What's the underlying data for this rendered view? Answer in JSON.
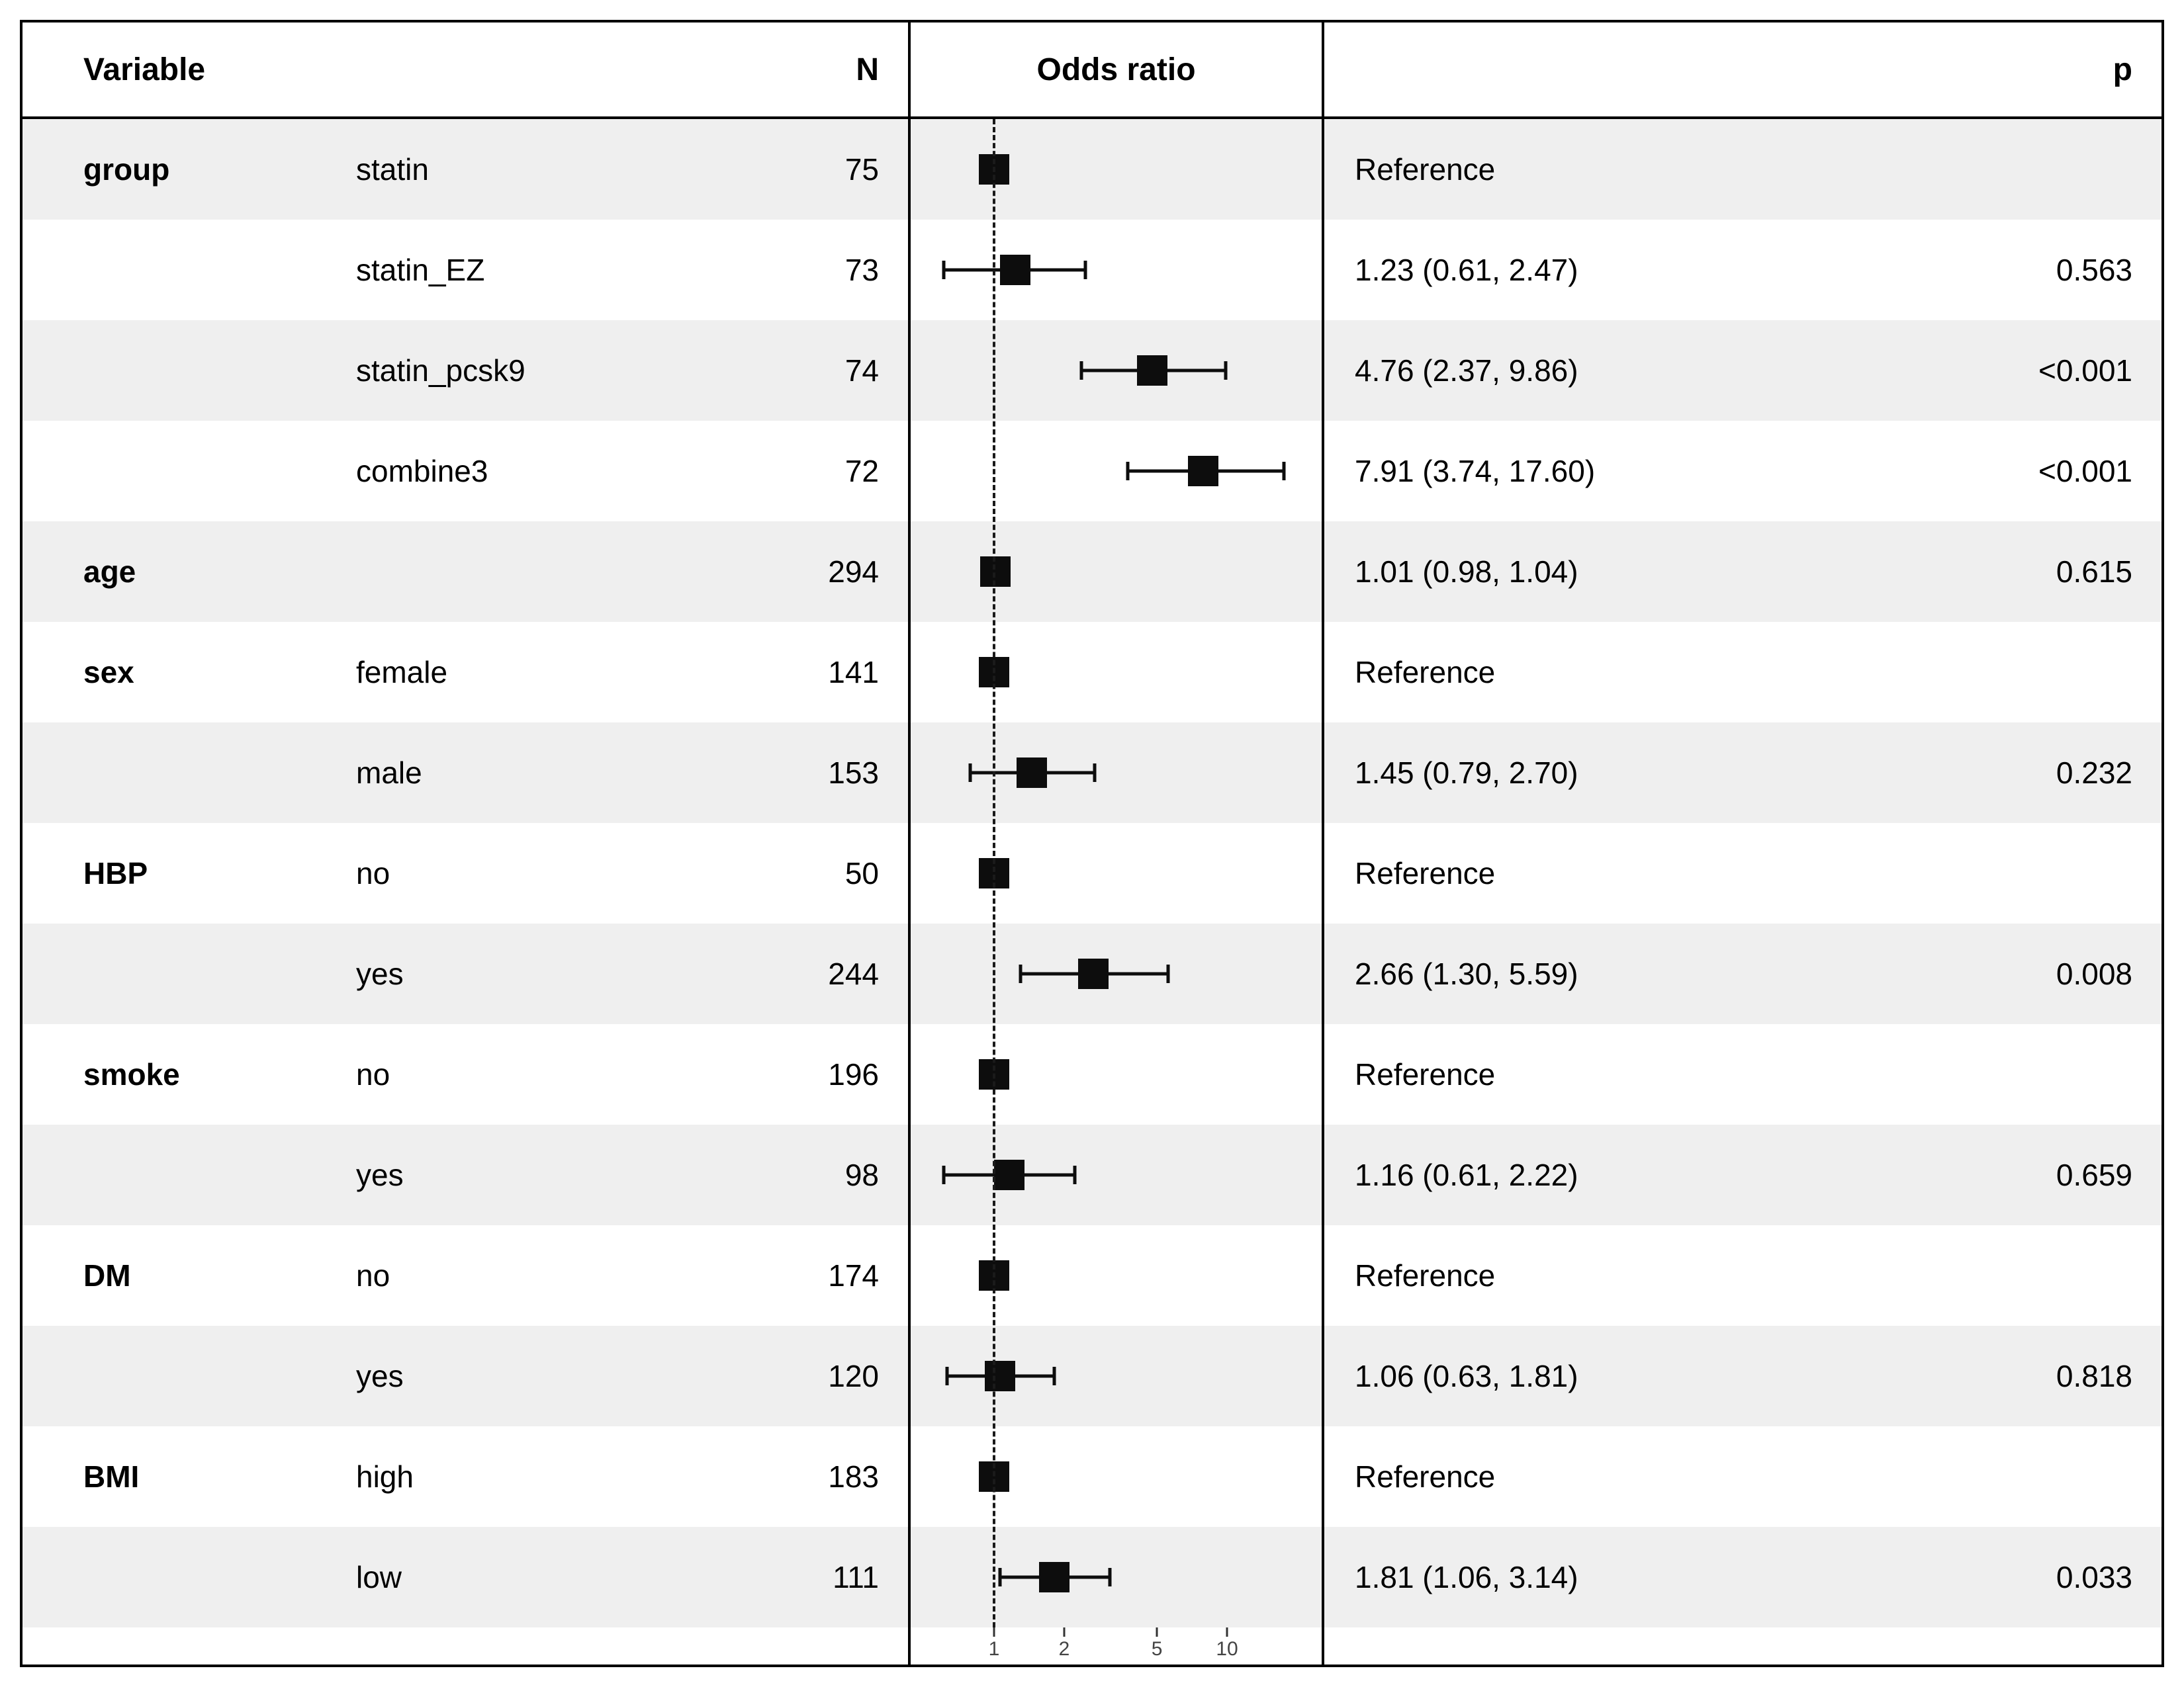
{
  "header": {
    "variable": "Variable",
    "n": "N",
    "odds_ratio": "Odds ratio",
    "p": "p"
  },
  "colors": {
    "stripe": "#efefef",
    "marker": "#0d0d0d",
    "border": "#000000"
  },
  "chart_data": {
    "type": "scatter",
    "subtype": "forest-plot",
    "xscale": "log",
    "xticks": [
      1,
      2,
      5,
      10
    ],
    "reference_line": 1,
    "x_range": [
      0.43,
      25.5
    ],
    "grid": false,
    "rows": [
      {
        "variable": "group",
        "level": "statin",
        "n": 75,
        "estimate": 1.0,
        "ci_low": null,
        "ci_high": null,
        "estimate_label": "Reference",
        "p": "",
        "shaded": true
      },
      {
        "variable": "",
        "level": "statin_EZ",
        "n": 73,
        "estimate": 1.23,
        "ci_low": 0.61,
        "ci_high": 2.47,
        "estimate_label": "1.23 (0.61, 2.47)",
        "p": "0.563",
        "shaded": false
      },
      {
        "variable": "",
        "level": "statin_pcsk9",
        "n": 74,
        "estimate": 4.76,
        "ci_low": 2.37,
        "ci_high": 9.86,
        "estimate_label": "4.76 (2.37, 9.86)",
        "p": "<0.001",
        "shaded": true
      },
      {
        "variable": "",
        "level": "combine3",
        "n": 72,
        "estimate": 7.91,
        "ci_low": 3.74,
        "ci_high": 17.6,
        "estimate_label": "7.91 (3.74, 17.60)",
        "p": "<0.001",
        "shaded": false
      },
      {
        "variable": "age",
        "level": "",
        "n": 294,
        "estimate": 1.01,
        "ci_low": 0.98,
        "ci_high": 1.04,
        "estimate_label": "1.01 (0.98, 1.04)",
        "p": "0.615",
        "shaded": true
      },
      {
        "variable": "sex",
        "level": "female",
        "n": 141,
        "estimate": 1.0,
        "ci_low": null,
        "ci_high": null,
        "estimate_label": "Reference",
        "p": "",
        "shaded": false
      },
      {
        "variable": "",
        "level": "male",
        "n": 153,
        "estimate": 1.45,
        "ci_low": 0.79,
        "ci_high": 2.7,
        "estimate_label": "1.45 (0.79, 2.70)",
        "p": "0.232",
        "shaded": true
      },
      {
        "variable": "HBP",
        "level": "no",
        "n": 50,
        "estimate": 1.0,
        "ci_low": null,
        "ci_high": null,
        "estimate_label": "Reference",
        "p": "",
        "shaded": false
      },
      {
        "variable": "",
        "level": "yes",
        "n": 244,
        "estimate": 2.66,
        "ci_low": 1.3,
        "ci_high": 5.59,
        "estimate_label": "2.66 (1.30, 5.59)",
        "p": "0.008",
        "shaded": true
      },
      {
        "variable": "smoke",
        "level": "no",
        "n": 196,
        "estimate": 1.0,
        "ci_low": null,
        "ci_high": null,
        "estimate_label": "Reference",
        "p": "",
        "shaded": false
      },
      {
        "variable": "",
        "level": "yes",
        "n": 98,
        "estimate": 1.16,
        "ci_low": 0.61,
        "ci_high": 2.22,
        "estimate_label": "1.16 (0.61, 2.22)",
        "p": "0.659",
        "shaded": true
      },
      {
        "variable": "DM",
        "level": "no",
        "n": 174,
        "estimate": 1.0,
        "ci_low": null,
        "ci_high": null,
        "estimate_label": "Reference",
        "p": "",
        "shaded": false
      },
      {
        "variable": "",
        "level": "yes",
        "n": 120,
        "estimate": 1.06,
        "ci_low": 0.63,
        "ci_high": 1.81,
        "estimate_label": "1.06 (0.63, 1.81)",
        "p": "0.818",
        "shaded": true
      },
      {
        "variable": "BMI",
        "level": "high",
        "n": 183,
        "estimate": 1.0,
        "ci_low": null,
        "ci_high": null,
        "estimate_label": "Reference",
        "p": "",
        "shaded": false
      },
      {
        "variable": "",
        "level": "low",
        "n": 111,
        "estimate": 1.81,
        "ci_low": 1.06,
        "ci_high": 3.14,
        "estimate_label": "1.81 (1.06, 3.14)",
        "p": "0.033",
        "shaded": true
      }
    ]
  }
}
